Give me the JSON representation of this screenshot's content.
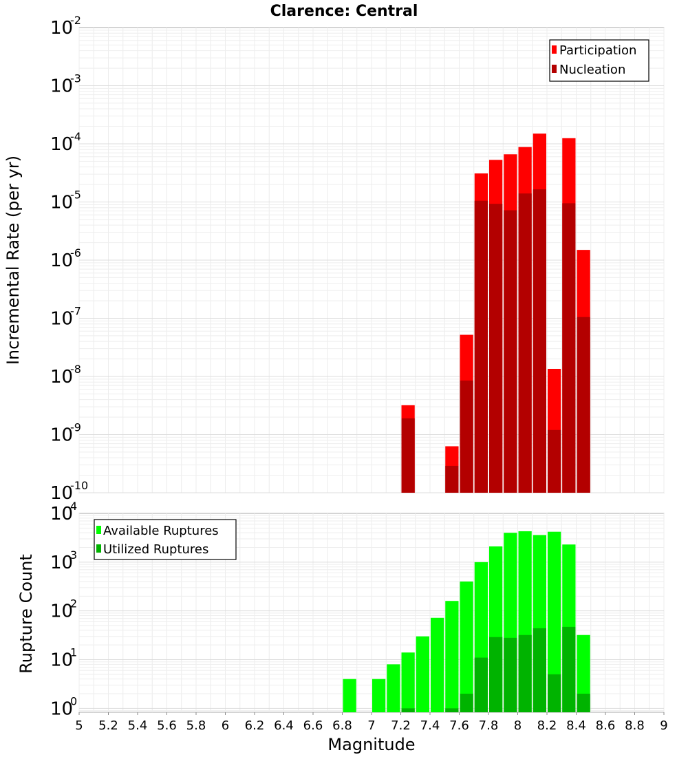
{
  "chart_data": [
    {
      "type": "bar",
      "title": "Clarence: Central",
      "xlabel": "",
      "ylabel": "Incremental Rate (per yr)",
      "yscale": "log",
      "ylim_exponents": [
        -10,
        -2
      ],
      "ytick_base": "10",
      "ytick_exponents": [
        "-10",
        "-9",
        "-8",
        "-7",
        "-6",
        "-5",
        "-4",
        "-3",
        "-2"
      ],
      "xlim": [
        5,
        9
      ],
      "bin_width": 0.1,
      "grid": true,
      "legend": {
        "placement": "top-right"
      },
      "series": [
        {
          "name": "Participation",
          "color": "#ff0000",
          "points": [
            {
              "x": 7.25,
              "y": 3.2e-09
            },
            {
              "x": 7.55,
              "y": 6.3e-10
            },
            {
              "x": 7.65,
              "y": 5.2e-08
            },
            {
              "x": 7.75,
              "y": 3.1e-05
            },
            {
              "x": 7.85,
              "y": 5.3e-05
            },
            {
              "x": 7.95,
              "y": 6.6e-05
            },
            {
              "x": 8.05,
              "y": 8.8e-05
            },
            {
              "x": 8.15,
              "y": 0.00015
            },
            {
              "x": 8.25,
              "y": 1.35e-08
            },
            {
              "x": 8.35,
              "y": 0.000125
            },
            {
              "x": 8.45,
              "y": 1.5e-06
            }
          ]
        },
        {
          "name": "Nucleation",
          "color": "#b30000",
          "points": [
            {
              "x": 7.25,
              "y": 1.9e-09
            },
            {
              "x": 7.55,
              "y": 2.9e-10
            },
            {
              "x": 7.65,
              "y": 8.5e-09
            },
            {
              "x": 7.75,
              "y": 1.05e-05
            },
            {
              "x": 7.85,
              "y": 9.3e-06
            },
            {
              "x": 7.95,
              "y": 7.2e-06
            },
            {
              "x": 8.05,
              "y": 1.4e-05
            },
            {
              "x": 8.15,
              "y": 1.65e-05
            },
            {
              "x": 8.25,
              "y": 1.2e-09
            },
            {
              "x": 8.35,
              "y": 9.5e-06
            },
            {
              "x": 8.45,
              "y": 1.05e-07
            }
          ]
        }
      ]
    },
    {
      "type": "bar",
      "xlabel": "Magnitude",
      "ylabel": "Rupture Count",
      "yscale": "log",
      "ylim_exponents": [
        -0.08,
        4
      ],
      "ytick_base": "10",
      "ytick_exponents": [
        "0",
        "1",
        "2",
        "3",
        "4"
      ],
      "xlim": [
        5,
        9
      ],
      "xticks": [
        "5",
        "5.2",
        "5.4",
        "5.6",
        "5.8",
        "6",
        "6.2",
        "6.4",
        "6.6",
        "6.8",
        "7",
        "7.2",
        "7.4",
        "7.6",
        "7.8",
        "8",
        "8.2",
        "8.4",
        "8.6",
        "8.8",
        "9"
      ],
      "bin_width": 0.1,
      "grid": true,
      "legend": {
        "placement": "top-left"
      },
      "series": [
        {
          "name": "Available Ruptures",
          "color": "#00ff00",
          "points": [
            {
              "x": 6.85,
              "y": 4
            },
            {
              "x": 7.05,
              "y": 4
            },
            {
              "x": 7.15,
              "y": 8
            },
            {
              "x": 7.25,
              "y": 14
            },
            {
              "x": 7.35,
              "y": 30
            },
            {
              "x": 7.45,
              "y": 72
            },
            {
              "x": 7.55,
              "y": 160
            },
            {
              "x": 7.65,
              "y": 400
            },
            {
              "x": 7.75,
              "y": 1000
            },
            {
              "x": 7.85,
              "y": 2100
            },
            {
              "x": 7.95,
              "y": 4000
            },
            {
              "x": 8.05,
              "y": 4300
            },
            {
              "x": 8.15,
              "y": 3600
            },
            {
              "x": 8.25,
              "y": 4200
            },
            {
              "x": 8.35,
              "y": 2300
            },
            {
              "x": 8.45,
              "y": 32
            }
          ]
        },
        {
          "name": "Utilized Ruptures",
          "color": "#00b300",
          "points": [
            {
              "x": 7.25,
              "y": 1
            },
            {
              "x": 7.55,
              "y": 1
            },
            {
              "x": 7.65,
              "y": 2
            },
            {
              "x": 7.75,
              "y": 11
            },
            {
              "x": 7.85,
              "y": 29
            },
            {
              "x": 7.95,
              "y": 28
            },
            {
              "x": 8.05,
              "y": 32
            },
            {
              "x": 8.15,
              "y": 44
            },
            {
              "x": 8.25,
              "y": 5
            },
            {
              "x": 8.35,
              "y": 47
            },
            {
              "x": 8.45,
              "y": 2
            }
          ]
        }
      ]
    }
  ]
}
